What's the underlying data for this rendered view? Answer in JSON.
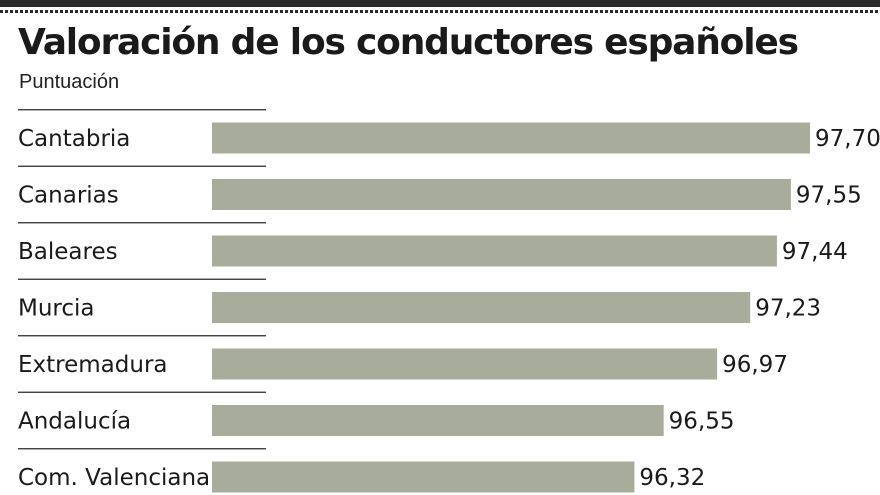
{
  "header": {
    "title": "Valoración de los conductores españoles",
    "subtitle": "Puntuación"
  },
  "colors": {
    "bar": "#a8ac9a",
    "text": "#1a1a1a",
    "rule": "#2a2a2a"
  },
  "chart_data": {
    "type": "bar",
    "orientation": "horizontal",
    "title": "Valoración de los conductores españoles",
    "subtitle": "Puntuación",
    "categories": [
      "Cantabria",
      "Canarias",
      "Baleares",
      "Murcia",
      "Extremadura",
      "Andalucía",
      "Com. Valenciana"
    ],
    "values": [
      97.7,
      97.55,
      97.44,
      97.23,
      96.97,
      96.55,
      96.32
    ],
    "value_labels": [
      "97,70",
      "97,55",
      "97,44",
      "97,23",
      "96,97",
      "96,55",
      "96,32"
    ],
    "xlabel": "",
    "ylabel": "",
    "xlim": [
      93.0,
      97.7
    ],
    "grid": false,
    "legend": "none"
  }
}
